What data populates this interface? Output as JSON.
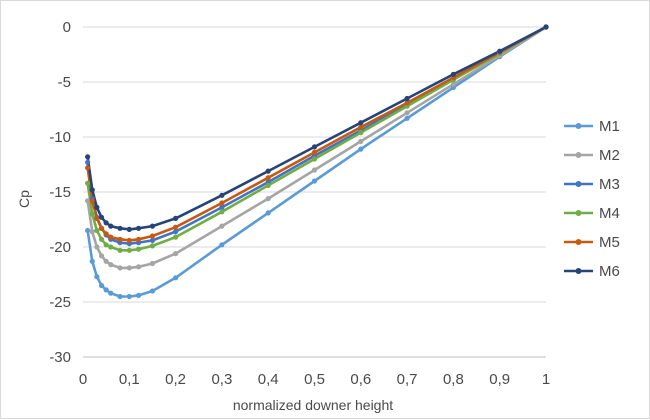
{
  "chart_data": {
    "type": "line",
    "title": "",
    "xlabel": "normalized downer height",
    "ylabel": "Cp",
    "xlim": [
      0,
      1
    ],
    "ylim": [
      -30,
      0
    ],
    "x_ticks": [
      "0",
      "0,1",
      "0,2",
      "0,3",
      "0,4",
      "0,5",
      "0,6",
      "0,7",
      "0,8",
      "0,9",
      "1"
    ],
    "y_ticks": [
      "0",
      "-5",
      "-10",
      "-15",
      "-20",
      "-25",
      "-30"
    ],
    "grid": "horizontal",
    "legend_position": "right",
    "series": [
      {
        "name": "M1",
        "color": "#5b9bd5",
        "marker": "circle",
        "x": [
          0.01,
          0.02,
          0.03,
          0.04,
          0.05,
          0.06,
          0.08,
          0.1,
          0.12,
          0.15,
          0.2,
          0.3,
          0.4,
          0.5,
          0.6,
          0.7,
          0.8,
          0.9,
          1.0
        ],
        "y": [
          -18.5,
          -21.3,
          -22.7,
          -23.5,
          -23.9,
          -24.2,
          -24.5,
          -24.5,
          -24.4,
          -24.0,
          -22.8,
          -19.8,
          -16.9,
          -14.0,
          -11.1,
          -8.3,
          -5.5,
          -2.7,
          0
        ]
      },
      {
        "name": "M2",
        "color": "#a5a5a5",
        "marker": "circle",
        "x": [
          0.01,
          0.02,
          0.03,
          0.04,
          0.05,
          0.06,
          0.08,
          0.1,
          0.12,
          0.15,
          0.2,
          0.3,
          0.4,
          0.5,
          0.6,
          0.7,
          0.8,
          0.9,
          1.0
        ],
        "y": [
          -15.8,
          -18.6,
          -20.0,
          -20.8,
          -21.3,
          -21.6,
          -21.9,
          -21.9,
          -21.8,
          -21.5,
          -20.6,
          -18.1,
          -15.6,
          -13.0,
          -10.4,
          -7.8,
          -5.2,
          -2.6,
          0
        ]
      },
      {
        "name": "M3",
        "color": "#4472c4",
        "marker": "circle",
        "x": [
          0.01,
          0.02,
          0.03,
          0.04,
          0.05,
          0.06,
          0.08,
          0.1,
          0.12,
          0.15,
          0.2,
          0.3,
          0.4,
          0.5,
          0.6,
          0.7,
          0.8,
          0.9,
          1.0
        ],
        "y": [
          -12.3,
          -15.6,
          -17.3,
          -18.3,
          -18.9,
          -19.3,
          -19.6,
          -19.7,
          -19.6,
          -19.4,
          -18.6,
          -16.4,
          -14.1,
          -11.7,
          -9.4,
          -7.0,
          -4.7,
          -2.3,
          0
        ]
      },
      {
        "name": "M4",
        "color": "#70ad47",
        "marker": "circle",
        "x": [
          0.01,
          0.02,
          0.03,
          0.04,
          0.05,
          0.06,
          0.08,
          0.1,
          0.12,
          0.15,
          0.2,
          0.3,
          0.4,
          0.5,
          0.6,
          0.7,
          0.8,
          0.9,
          1.0
        ],
        "y": [
          -14.2,
          -17.0,
          -18.5,
          -19.3,
          -19.8,
          -20.0,
          -20.3,
          -20.3,
          -20.2,
          -19.9,
          -19.1,
          -16.8,
          -14.4,
          -12.0,
          -9.6,
          -7.2,
          -4.8,
          -2.4,
          0
        ]
      },
      {
        "name": "M5",
        "color": "#c55a11",
        "marker": "circle",
        "x": [
          0.01,
          0.02,
          0.03,
          0.04,
          0.05,
          0.06,
          0.08,
          0.1,
          0.12,
          0.15,
          0.2,
          0.3,
          0.4,
          0.5,
          0.6,
          0.7,
          0.8,
          0.9,
          1.0
        ],
        "y": [
          -12.8,
          -15.8,
          -17.4,
          -18.3,
          -18.8,
          -19.1,
          -19.3,
          -19.4,
          -19.3,
          -19.0,
          -18.2,
          -16.0,
          -13.7,
          -11.4,
          -9.1,
          -6.9,
          -4.6,
          -2.3,
          0
        ]
      },
      {
        "name": "M6",
        "color": "#264478",
        "marker": "circle",
        "x": [
          0.01,
          0.02,
          0.03,
          0.04,
          0.05,
          0.06,
          0.08,
          0.1,
          0.12,
          0.15,
          0.2,
          0.3,
          0.4,
          0.5,
          0.6,
          0.7,
          0.8,
          0.9,
          1.0
        ],
        "y": [
          -11.8,
          -14.8,
          -16.4,
          -17.3,
          -17.8,
          -18.1,
          -18.3,
          -18.4,
          -18.3,
          -18.1,
          -17.4,
          -15.3,
          -13.1,
          -10.9,
          -8.7,
          -6.5,
          -4.3,
          -2.2,
          0
        ]
      }
    ]
  }
}
